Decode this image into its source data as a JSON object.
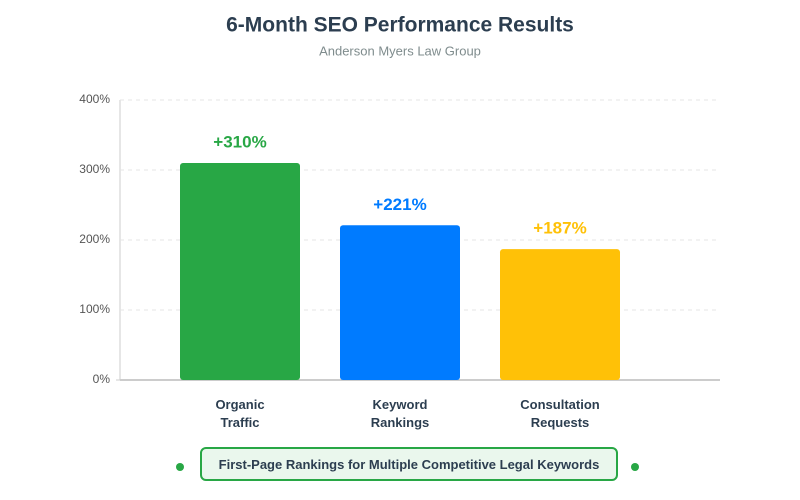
{
  "chart_data": {
    "type": "bar",
    "title": "6-Month SEO Performance Results",
    "subtitle": "Anderson Myers Law Group",
    "categories": [
      "Organic Traffic",
      "Keyword Rankings",
      "Consultation Requests"
    ],
    "values": [
      310,
      221,
      187
    ],
    "value_labels": [
      "+310%",
      "+221%",
      "+187%"
    ],
    "colors": [
      "#28a745",
      "#007bff",
      "#ffc107"
    ],
    "ylim": [
      0,
      400
    ],
    "yticks": [
      {
        "value": 0,
        "label": "0%"
      },
      {
        "value": 100,
        "label": "100%"
      },
      {
        "value": 200,
        "label": "200%"
      },
      {
        "value": 300,
        "label": "300%"
      },
      {
        "value": 400,
        "label": "400%"
      }
    ],
    "grid": true,
    "annotation": "First-Page Rankings for Multiple Competitive Legal Keywords"
  }
}
